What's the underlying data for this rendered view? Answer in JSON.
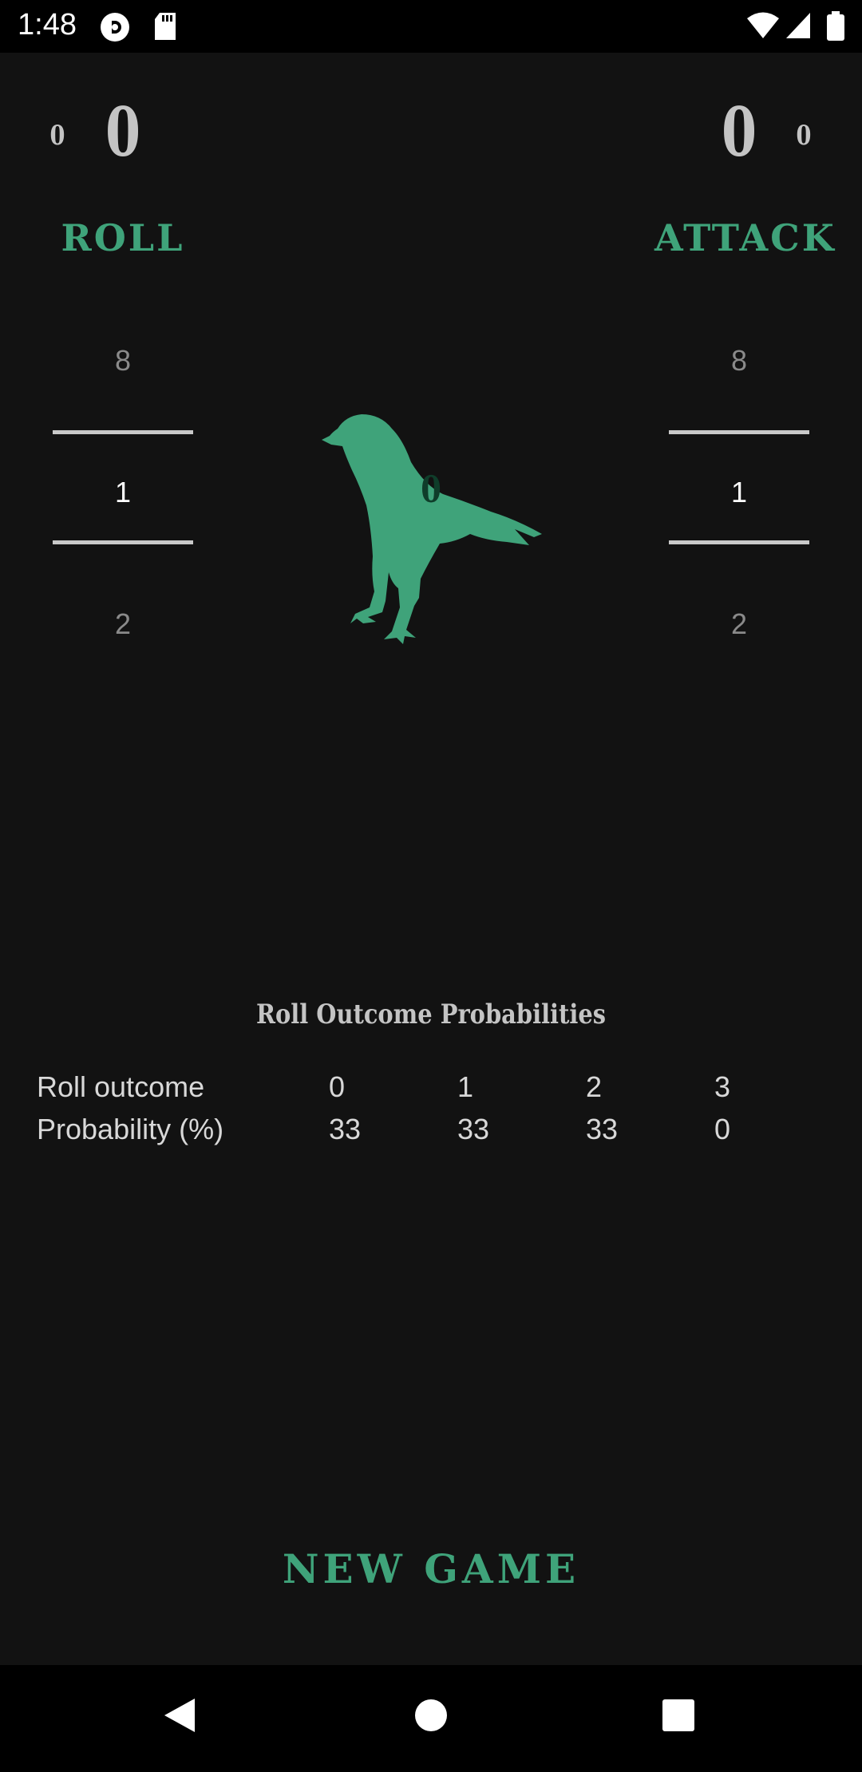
{
  "status_bar": {
    "time": "1:48",
    "icons": [
      "pocket-casts-icon",
      "sd-card-icon",
      "wifi-icon",
      "signal-icon",
      "battery-icon"
    ]
  },
  "colors": {
    "background": "#121212",
    "accent_green": "#3fa37a",
    "score_gray": "#c4c4c4"
  },
  "left_player": {
    "small_score": "0",
    "big_score": "0",
    "label": "ROLL",
    "picker": {
      "above": "8",
      "selected": "1",
      "below": "2"
    }
  },
  "right_player": {
    "small_score": "0",
    "big_score": "0",
    "label": "ATTACK",
    "picker": {
      "above": "8",
      "selected": "1",
      "below": "2"
    }
  },
  "crow": {
    "icon": "crow-icon",
    "value": "0"
  },
  "probabilities": {
    "title": "Roll Outcome Probabilities",
    "row1": {
      "header": "Roll outcome",
      "values": [
        "0",
        "1",
        "2",
        "3"
      ]
    },
    "row2": {
      "header": "Probability (%)",
      "values": [
        "33",
        "33",
        "33",
        "0"
      ]
    }
  },
  "new_game_label": "NEW GAME",
  "nav_bar": {
    "icons": [
      "back-icon",
      "home-icon",
      "recents-icon"
    ]
  }
}
